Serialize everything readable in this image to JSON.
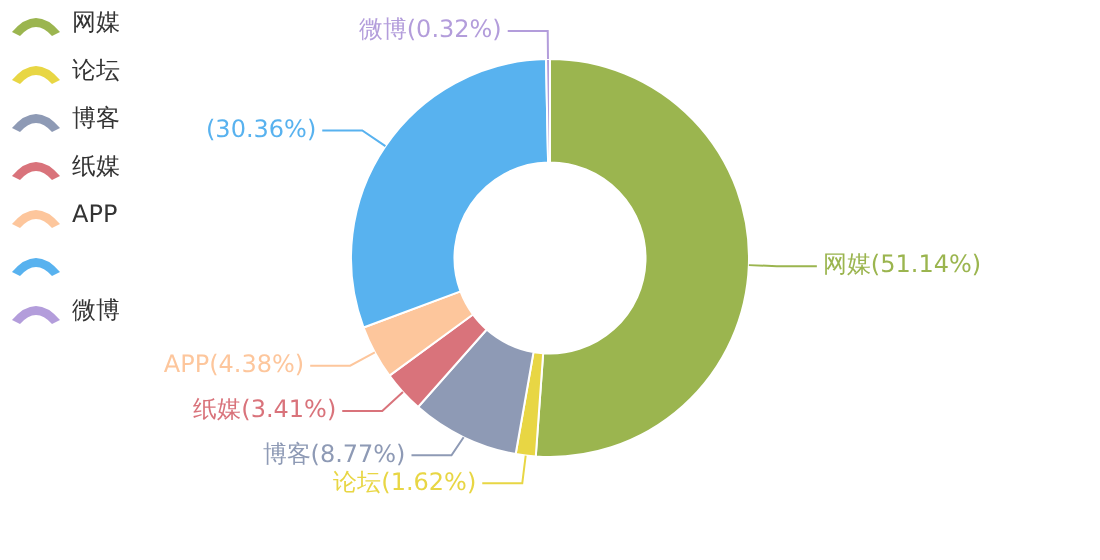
{
  "chart_data": {
    "type": "donut",
    "categories": [
      "网媒",
      "论坛",
      "博客",
      "纸媒",
      "APP",
      null,
      "微博"
    ],
    "values": [
      51.14,
      1.62,
      8.77,
      3.41,
      4.38,
      30.36,
      0.32
    ],
    "colors": [
      "#9bb54f",
      "#e8d644",
      "#8e9ab5",
      "#d9737b",
      "#fdc69c",
      "#58b2ef",
      "#b39ddb"
    ],
    "value_labels": [
      "网媒(51.14%)",
      "论坛(1.62%)",
      "博客(8.77%)",
      "纸媒(3.41%)",
      "APP(4.38%)",
      "(30.36%)",
      "微博(0.32%)"
    ],
    "legend": "top left"
  }
}
